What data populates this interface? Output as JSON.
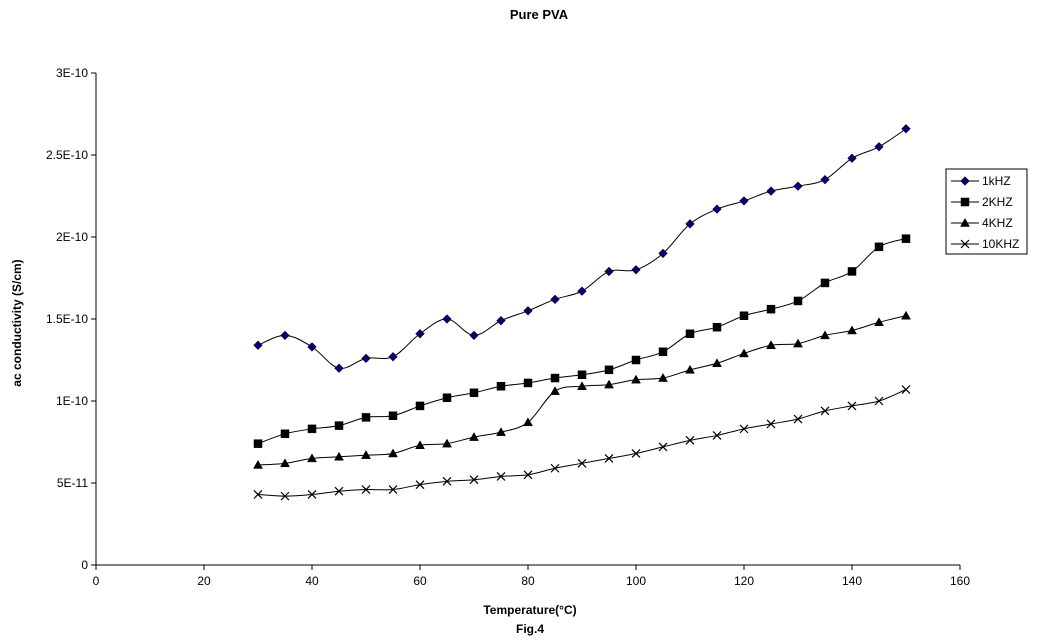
{
  "chart_data": {
    "type": "line",
    "title": "Pure PVA",
    "xlabel": "Temperature(°C)",
    "ylabel": "ac conductivity (S/cm)",
    "caption": "Fig.4",
    "xlim": [
      0,
      160
    ],
    "ylim": [
      0,
      3e-10
    ],
    "xticks": [
      0,
      20,
      40,
      60,
      80,
      100,
      120,
      140,
      160
    ],
    "yticks": [
      0,
      5e-11,
      1e-10,
      1.5e-10,
      2e-10,
      2.5e-10,
      3e-10
    ],
    "x_tick_labels": [
      "0",
      "20",
      "40",
      "60",
      "80",
      "100",
      "120",
      "140",
      "160"
    ],
    "y_tick_labels": [
      "0",
      "5E-11",
      "1E-10",
      "1.5E-10",
      "2E-10",
      "2.5E-10",
      "3E-10"
    ],
    "grid": false,
    "legend_position": "right",
    "x": [
      30,
      35,
      40,
      45,
      50,
      55,
      60,
      65,
      70,
      75,
      80,
      85,
      90,
      95,
      100,
      105,
      110,
      115,
      120,
      125,
      130,
      135,
      140,
      145,
      150
    ],
    "series": [
      {
        "name": "1kHZ",
        "marker": "diamond",
        "color": "#000080",
        "values": [
          1.34e-10,
          1.4e-10,
          1.33e-10,
          1.2e-10,
          1.26e-10,
          1.27e-10,
          1.41e-10,
          1.5e-10,
          1.4e-10,
          1.49e-10,
          1.55e-10,
          1.62e-10,
          1.67e-10,
          1.79e-10,
          1.8e-10,
          1.9e-10,
          2.08e-10,
          2.17e-10,
          2.22e-10,
          2.28e-10,
          2.31e-10,
          2.35e-10,
          2.48e-10,
          2.55e-10,
          2.66e-10
        ]
      },
      {
        "name": "2KHZ",
        "marker": "square",
        "color": "#000000",
        "values": [
          7.4e-11,
          8e-11,
          8.3e-11,
          8.5e-11,
          9e-11,
          9.1e-11,
          9.7e-11,
          1.02e-10,
          1.05e-10,
          1.09e-10,
          1.11e-10,
          1.14e-10,
          1.16e-10,
          1.19e-10,
          1.25e-10,
          1.3e-10,
          1.41e-10,
          1.45e-10,
          1.52e-10,
          1.56e-10,
          1.61e-10,
          1.72e-10,
          1.79e-10,
          1.94e-10,
          1.99e-10
        ]
      },
      {
        "name": "4KHZ",
        "marker": "triangle",
        "color": "#000000",
        "values": [
          6.1e-11,
          6.2e-11,
          6.5e-11,
          6.6e-11,
          6.7e-11,
          6.8e-11,
          7.3e-11,
          7.4e-11,
          7.8e-11,
          8.1e-11,
          8.7e-11,
          1.06e-10,
          1.09e-10,
          1.1e-10,
          1.13e-10,
          1.14e-10,
          1.19e-10,
          1.23e-10,
          1.29e-10,
          1.34e-10,
          1.35e-10,
          1.4e-10,
          1.43e-10,
          1.48e-10,
          1.52e-10
        ]
      },
      {
        "name": "10KHZ",
        "marker": "x",
        "color": "#000000",
        "values": [
          4.3e-11,
          4.2e-11,
          4.3e-11,
          4.5e-11,
          4.6e-11,
          4.6e-11,
          4.9e-11,
          5.1e-11,
          5.2e-11,
          5.4e-11,
          5.5e-11,
          5.9e-11,
          6.2e-11,
          6.5e-11,
          6.8e-11,
          7.2e-11,
          7.6e-11,
          7.9e-11,
          8.3e-11,
          8.6e-11,
          8.9e-11,
          9.4e-11,
          9.7e-11,
          1e-10,
          1.07e-10
        ]
      }
    ]
  }
}
